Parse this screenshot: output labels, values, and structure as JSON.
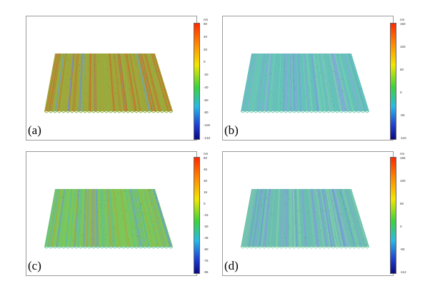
{
  "panels": [
    {
      "label": "(a)",
      "unit": "nm",
      "ticks": [
        "60",
        "40",
        "20",
        "0",
        "-20",
        "-40",
        "-60",
        "-80",
        "-100",
        "-133"
      ],
      "base": "#9fa83a",
      "stripe": "#c6712c",
      "stripe2": "#8fb346"
    },
    {
      "label": "(b)",
      "unit": "nm",
      "ticks": [
        "150",
        "100",
        "50",
        "0",
        "-50",
        "-110"
      ],
      "base": "#64c3b8",
      "stripe": "#86a7dd",
      "stripe2": "#7cd0b0"
    },
    {
      "label": "(c)",
      "unit": "nm",
      "ticks": [
        "60",
        "45",
        "30",
        "15",
        "0",
        "-15",
        "-30",
        "-45",
        "-60",
        "-75",
        "-95"
      ],
      "base": "#7cc75a",
      "stripe": "#a7ab43",
      "stripe2": "#5fc096"
    },
    {
      "label": "(d)",
      "unit": "nm",
      "ticks": [
        "155",
        "100",
        "50",
        "0",
        "-50",
        "-112"
      ],
      "base": "#6cbfb0",
      "stripe": "#7fa2d8",
      "stripe2": "#84d2a6"
    }
  ],
  "colors": {
    "border": "#9a9a9a",
    "frame": "#666666"
  }
}
